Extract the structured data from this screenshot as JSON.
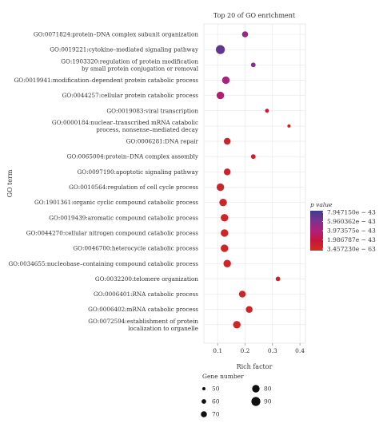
{
  "chart_data": {
    "type": "scatter",
    "title": "Top 20 of GO enrichment",
    "xlabel": "Rich factor",
    "ylabel": "GO term",
    "xlim": [
      0.05,
      0.42
    ],
    "xticks": [
      "0.1",
      "0.2",
      "0.3",
      "0.4"
    ],
    "xtick_values": [
      0.1,
      0.2,
      0.3,
      0.4
    ],
    "grid": true,
    "terms": [
      {
        "label": [
          "GO:0071824:protein–DNA complex subunit organization"
        ],
        "x": 0.2,
        "p": 0.6,
        "n": 70
      },
      {
        "label": [
          "GO:0019221:cytokine–mediated signaling pathway"
        ],
        "x": 0.11,
        "p": 0.85,
        "n": 90
      },
      {
        "label": [
          "GO:1903320:regulation of protein modification",
          "by small protein conjugation or removal"
        ],
        "x": 0.23,
        "p": 0.7,
        "n": 60
      },
      {
        "label": [
          "GO:0019941:modification–dependent protein catabolic process"
        ],
        "x": 0.13,
        "p": 0.55,
        "n": 80
      },
      {
        "label": [
          "GO:0044257:cellular protein catabolic process"
        ],
        "x": 0.11,
        "p": 0.45,
        "n": 80
      },
      {
        "label": [
          "GO:0019083:viral transcription"
        ],
        "x": 0.28,
        "p": 0.22,
        "n": 55
      },
      {
        "label": [
          "GO:0000184:nuclear–transcribed mRNA catabolic",
          "process, nonsense–mediated decay"
        ],
        "x": 0.36,
        "p": 0.15,
        "n": 50
      },
      {
        "label": [
          "GO:0006281:DNA repair"
        ],
        "x": 0.135,
        "p": 0.12,
        "n": 75
      },
      {
        "label": [
          "GO:0065004:protein–DNA complex assembly"
        ],
        "x": 0.23,
        "p": 0.15,
        "n": 60
      },
      {
        "label": [
          "GO:0097190:apoptotic signaling pathway"
        ],
        "x": 0.135,
        "p": 0.12,
        "n": 75
      },
      {
        "label": [
          "GO:0010564:regulation of cell cycle process"
        ],
        "x": 0.11,
        "p": 0.1,
        "n": 80
      },
      {
        "label": [
          "GO:1901361:organic cyclic compound catabolic process"
        ],
        "x": 0.12,
        "p": 0.1,
        "n": 80
      },
      {
        "label": [
          "GO:0019439:aromatic compound catabolic process"
        ],
        "x": 0.125,
        "p": 0.1,
        "n": 80
      },
      {
        "label": [
          "GO:0044270:cellular nitrogen compound catabolic process"
        ],
        "x": 0.125,
        "p": 0.1,
        "n": 80
      },
      {
        "label": [
          "GO:0046700:heterocycle catabolic process"
        ],
        "x": 0.125,
        "p": 0.1,
        "n": 80
      },
      {
        "label": [
          "GO:0034655:nucleobase–containing compound catabolic process"
        ],
        "x": 0.135,
        "p": 0.1,
        "n": 80
      },
      {
        "label": [
          "GO:0032200:telomere organization"
        ],
        "x": 0.32,
        "p": 0.12,
        "n": 60
      },
      {
        "label": [
          "GO:0006401:RNA catabolic process"
        ],
        "x": 0.19,
        "p": 0.1,
        "n": 75
      },
      {
        "label": [
          "GO:0006402:mRNA catabolic process"
        ],
        "x": 0.215,
        "p": 0.1,
        "n": 75
      },
      {
        "label": [
          "GO:0072594:establishment of protein",
          "localization to organelle"
        ],
        "x": 0.17,
        "p": 0.08,
        "n": 80
      }
    ],
    "color_legend": {
      "title": "p value",
      "labels": [
        "7.947150e − 43",
        "5.960362e − 43",
        "3.973575e − 43",
        "1.986787e − 43",
        "3.457230e − 63"
      ],
      "gradient": [
        "#3f3d8a",
        "#7a3290",
        "#b0207a",
        "#c8143c",
        "#d0301a"
      ]
    },
    "size_legend": {
      "title": "Gene number",
      "items": [
        {
          "label": "50",
          "n": 50
        },
        {
          "label": "60",
          "n": 60
        },
        {
          "label": "70",
          "n": 70
        },
        {
          "label": "80",
          "n": 80
        },
        {
          "label": "90",
          "n": 90
        }
      ]
    }
  }
}
